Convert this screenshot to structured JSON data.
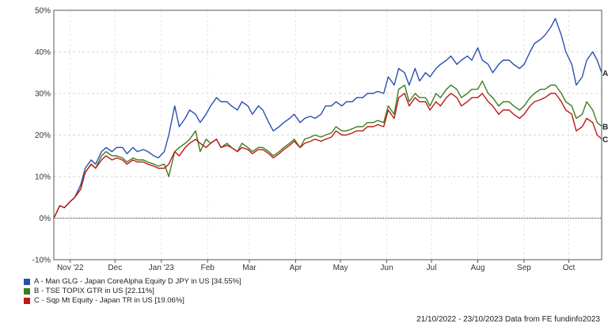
{
  "chart_data": {
    "type": "line",
    "ylim": [
      -10,
      50
    ],
    "y_ticks": [
      "50%",
      "40%",
      "30%",
      "20%",
      "10%",
      "0%",
      "-10%"
    ],
    "y_tick_values": [
      50,
      40,
      30,
      20,
      10,
      0,
      -10
    ],
    "x_tick_labels": [
      "Nov '22",
      "Dec",
      "Jan '23",
      "Feb",
      "Mar",
      "Apr",
      "May",
      "Jun",
      "Jul",
      "Aug",
      "Sep",
      "Oct"
    ],
    "x_tick_dates": [
      "2022-11-01",
      "2022-12-01",
      "2023-01-01",
      "2023-02-01",
      "2023-03-01",
      "2023-04-01",
      "2023-05-01",
      "2023-06-01",
      "2023-07-01",
      "2023-08-01",
      "2023-09-01",
      "2023-10-01"
    ],
    "x_range": [
      "2022-10-21",
      "2023-10-23"
    ],
    "grid": true,
    "x": [
      "2022-10-21",
      "2022-10-25",
      "2022-10-28",
      "2022-11-01",
      "2022-11-04",
      "2022-11-08",
      "2022-11-11",
      "2022-11-15",
      "2022-11-18",
      "2022-11-22",
      "2022-11-25",
      "2022-11-29",
      "2022-12-02",
      "2022-12-06",
      "2022-12-09",
      "2022-12-13",
      "2022-12-16",
      "2022-12-20",
      "2022-12-23",
      "2022-12-27",
      "2022-12-30",
      "2023-01-03",
      "2023-01-06",
      "2023-01-10",
      "2023-01-13",
      "2023-01-17",
      "2023-01-20",
      "2023-01-24",
      "2023-01-27",
      "2023-01-31",
      "2023-02-03",
      "2023-02-07",
      "2023-02-10",
      "2023-02-14",
      "2023-02-17",
      "2023-02-21",
      "2023-02-24",
      "2023-02-28",
      "2023-03-03",
      "2023-03-07",
      "2023-03-10",
      "2023-03-14",
      "2023-03-17",
      "2023-03-21",
      "2023-03-24",
      "2023-03-28",
      "2023-03-31",
      "2023-04-04",
      "2023-04-07",
      "2023-04-11",
      "2023-04-14",
      "2023-04-18",
      "2023-04-21",
      "2023-04-25",
      "2023-04-28",
      "2023-05-02",
      "2023-05-05",
      "2023-05-09",
      "2023-05-12",
      "2023-05-16",
      "2023-05-19",
      "2023-05-23",
      "2023-05-26",
      "2023-05-30",
      "2023-06-02",
      "2023-06-06",
      "2023-06-09",
      "2023-06-13",
      "2023-06-16",
      "2023-06-20",
      "2023-06-23",
      "2023-06-27",
      "2023-06-30",
      "2023-07-04",
      "2023-07-07",
      "2023-07-11",
      "2023-07-14",
      "2023-07-18",
      "2023-07-21",
      "2023-07-25",
      "2023-07-28",
      "2023-08-01",
      "2023-08-04",
      "2023-08-08",
      "2023-08-11",
      "2023-08-15",
      "2023-08-18",
      "2023-08-22",
      "2023-08-25",
      "2023-08-29",
      "2023-09-01",
      "2023-09-05",
      "2023-09-08",
      "2023-09-12",
      "2023-09-15",
      "2023-09-19",
      "2023-09-22",
      "2023-09-26",
      "2023-09-29",
      "2023-10-03",
      "2023-10-06",
      "2023-10-10",
      "2023-10-13",
      "2023-10-17",
      "2023-10-20",
      "2023-10-23"
    ],
    "series": [
      {
        "name": "A - Man GLG - Japan CoreAlpha Equity D JPY in US [34.55%]",
        "end_label": "A",
        "color": "#2a4fb0",
        "values": [
          0,
          3,
          2.5,
          4,
          5,
          8,
          12,
          14,
          13,
          16,
          17,
          16,
          17,
          17,
          15.5,
          17,
          16,
          16.5,
          16,
          15,
          14.5,
          16,
          20,
          27,
          22,
          24,
          26,
          25,
          23,
          25,
          27,
          29,
          28,
          28,
          27,
          26,
          28,
          27,
          25,
          27,
          26,
          23,
          21,
          22,
          23,
          24,
          25,
          23,
          24,
          24.5,
          24,
          25,
          27,
          27,
          28,
          27,
          28,
          28,
          29,
          29,
          30,
          30,
          30.5,
          30,
          34,
          32,
          36,
          35,
          32,
          36,
          33,
          35,
          34,
          36,
          37,
          38,
          39,
          37,
          38,
          39,
          38,
          41,
          38,
          37,
          35,
          37,
          38,
          38,
          37,
          36,
          37,
          40,
          42,
          43,
          44,
          46,
          48,
          44,
          40,
          37,
          32,
          34,
          38,
          40,
          38,
          35
        ]
      },
      {
        "name": "B - TSE TOPIX GTR in US [22.11%]",
        "end_label": "B",
        "color": "#3e7d1f",
        "values": [
          0,
          3,
          2.5,
          4,
          5,
          7,
          11,
          13,
          12,
          15,
          16,
          15,
          15,
          14.5,
          13.5,
          14.5,
          14,
          14,
          13.5,
          13,
          12.5,
          13,
          10,
          16,
          17,
          18,
          19,
          21,
          16,
          19,
          18,
          19,
          17,
          18,
          17,
          16,
          18,
          17,
          16,
          17,
          17,
          16,
          15,
          16,
          17,
          18,
          19,
          17,
          19,
          19.5,
          20,
          19.5,
          20,
          20.5,
          22,
          21,
          21,
          21.5,
          22,
          22,
          23,
          23,
          23.5,
          23,
          27,
          25,
          31,
          32,
          28,
          30,
          29,
          29,
          27,
          30,
          29,
          31,
          32,
          31,
          29,
          30,
          31,
          31,
          33,
          30,
          29,
          27,
          28,
          28,
          27,
          26,
          27,
          29,
          30,
          31,
          31,
          32,
          32,
          30,
          28,
          27,
          24,
          25,
          28,
          26,
          23,
          22.1
        ]
      },
      {
        "name": "C - Sqp Mt Equity - Japan TR in US [19.06%]",
        "end_label": "C",
        "color": "#c01818",
        "values": [
          0,
          3,
          2.5,
          4,
          5,
          7,
          11,
          13,
          12,
          14,
          15,
          14,
          14.5,
          14,
          13,
          14,
          13.5,
          13.5,
          13,
          12.5,
          12,
          12,
          13,
          16,
          15,
          17,
          18,
          19,
          18,
          17,
          18,
          19,
          17,
          17.5,
          17,
          16,
          17,
          16.5,
          15.5,
          16.5,
          16.5,
          15.5,
          14.5,
          15.5,
          16.5,
          17.5,
          18.5,
          17,
          18,
          18.5,
          19,
          18.5,
          19,
          19.5,
          21,
          20,
          20,
          20.5,
          21,
          21,
          22,
          22,
          22.5,
          22,
          26,
          24,
          29,
          30,
          27,
          29,
          28,
          28,
          26,
          28,
          27,
          29,
          30,
          29,
          27,
          28,
          29,
          29,
          30,
          28,
          27,
          25,
          26,
          26,
          25,
          24,
          25,
          27,
          28,
          28.5,
          29,
          30,
          30,
          28,
          26,
          25,
          21,
          22,
          24,
          23,
          20,
          19.06
        ]
      }
    ]
  },
  "footer": {
    "range_text": "21/10/2022 - 23/10/2023 Data from FE fundinfo2023"
  }
}
